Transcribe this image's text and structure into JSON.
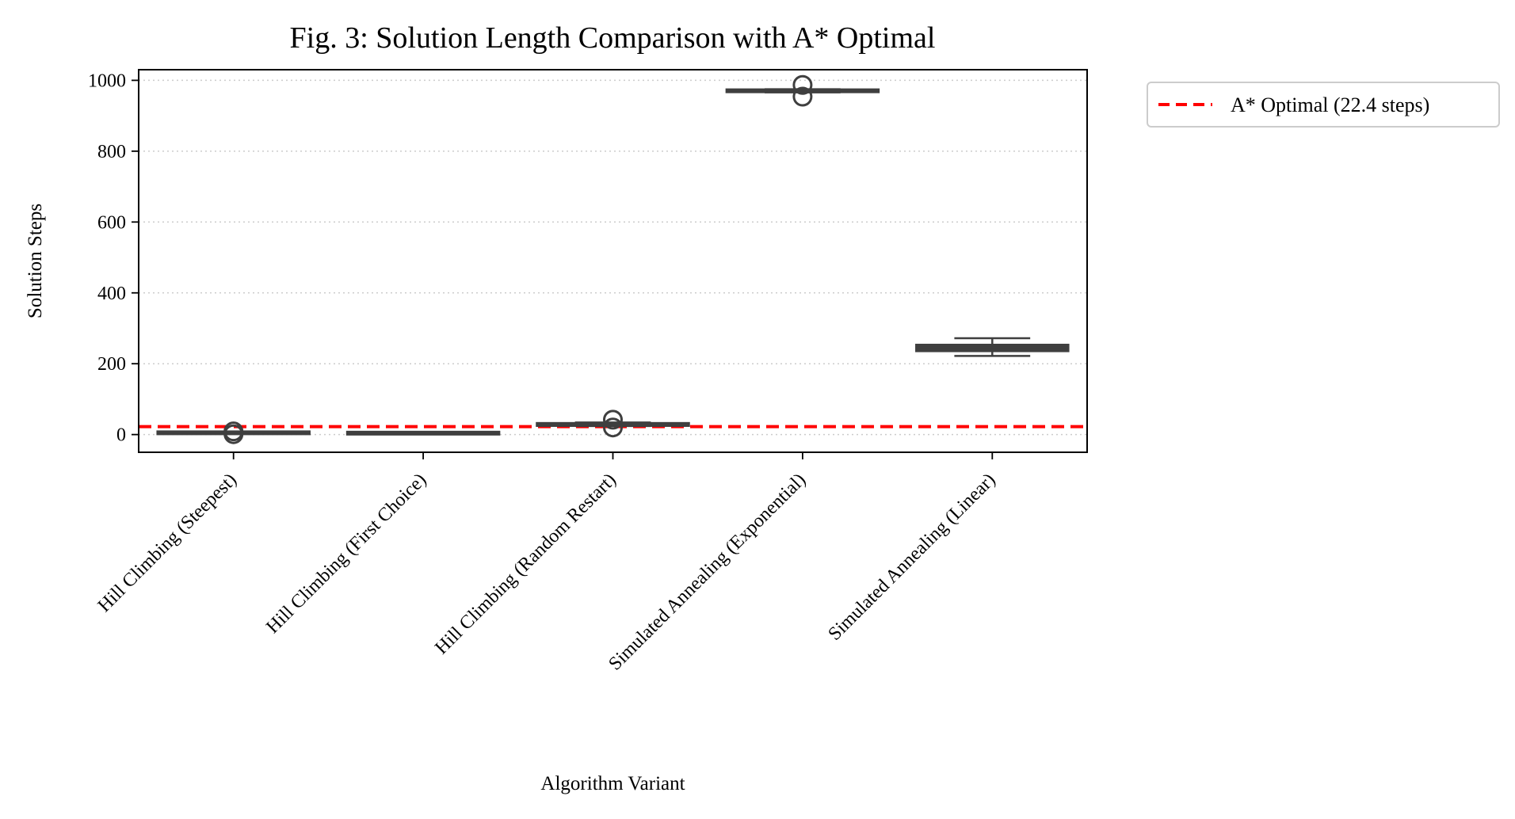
{
  "chart_data": {
    "type": "box",
    "title": "Fig. 3: Solution Length Comparison with A* Optimal",
    "xlabel": "Algorithm Variant",
    "ylabel": "Solution Steps",
    "ylim": [
      -50,
      1030
    ],
    "yticks": [
      0,
      200,
      400,
      600,
      800,
      1000
    ],
    "grid": "horizontal dotted",
    "legend_position": "outside upper right",
    "categories": [
      "Hill Climbing (Steepest)",
      "Hill Climbing (First Choice)",
      "Hill Climbing (Random Restart)",
      "Simulated Annealing (Exponential)",
      "Simulated Annealing (Linear)"
    ],
    "boxes": [
      {
        "category": "Hill Climbing (Steepest)",
        "whisker_low": 3,
        "q1": 4,
        "median": 5,
        "q3": 6,
        "whisker_high": 7,
        "outliers": [
          1,
          9
        ]
      },
      {
        "category": "Hill Climbing (First Choice)",
        "whisker_low": 2,
        "q1": 3,
        "median": 4,
        "q3": 5,
        "whisker_high": 6,
        "outliers": []
      },
      {
        "category": "Hill Climbing (Random Restart)",
        "whisker_low": 24,
        "q1": 25,
        "median": 28,
        "q3": 32,
        "whisker_high": 34,
        "outliers": [
          20,
          42
        ]
      },
      {
        "category": "Simulated Annealing (Exponential)",
        "whisker_low": 966,
        "q1": 968,
        "median": 970,
        "q3": 973,
        "whisker_high": 975,
        "outliers": [
          954,
          987
        ]
      },
      {
        "category": "Simulated Annealing (Linear)",
        "whisker_low": 222,
        "q1": 236,
        "median": 245,
        "q3": 253,
        "whisker_high": 272,
        "outliers": []
      }
    ],
    "reference_line": {
      "label": "A* Optimal (22.4 steps)",
      "value": 22.4,
      "color": "#ff0000",
      "style": "dashed"
    },
    "box_color": "#3f3f3f"
  }
}
